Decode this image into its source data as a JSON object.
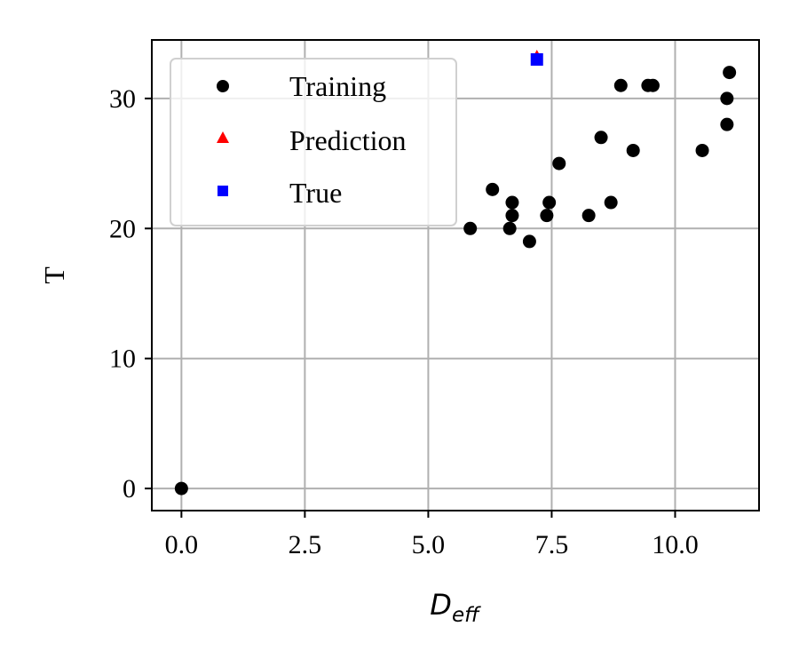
{
  "chart_data": {
    "type": "scatter",
    "xlabel_main": "D",
    "xlabel_sub": "eff",
    "ylabel": "T",
    "xlim": [
      -0.6,
      11.7
    ],
    "ylim": [
      -1.7,
      34.5
    ],
    "xticks": [
      0.0,
      2.5,
      5.0,
      7.5,
      10.0
    ],
    "xtick_labels": [
      "0.0",
      "2.5",
      "5.0",
      "7.5",
      "10.0"
    ],
    "yticks": [
      0,
      10,
      20,
      30
    ],
    "ytick_labels": [
      "0",
      "10",
      "20",
      "30"
    ],
    "grid": true,
    "legend_position": "upper-left",
    "series": [
      {
        "name": "Training",
        "marker": "circle",
        "color": "#000000",
        "points": [
          [
            0.0,
            0
          ],
          [
            5.85,
            20
          ],
          [
            6.3,
            23
          ],
          [
            6.65,
            20
          ],
          [
            6.7,
            21
          ],
          [
            6.7,
            22
          ],
          [
            7.05,
            19
          ],
          [
            7.4,
            21
          ],
          [
            7.45,
            22
          ],
          [
            7.65,
            25
          ],
          [
            8.25,
            21
          ],
          [
            8.5,
            27
          ],
          [
            8.7,
            22
          ],
          [
            8.9,
            31
          ],
          [
            9.15,
            26
          ],
          [
            9.45,
            31
          ],
          [
            9.55,
            31
          ],
          [
            10.55,
            26
          ],
          [
            11.05,
            28
          ],
          [
            11.05,
            30
          ],
          [
            11.1,
            32
          ]
        ]
      },
      {
        "name": "Prediction",
        "marker": "triangle",
        "color": "#ff0000",
        "points": [
          [
            7.2,
            33.2
          ]
        ]
      },
      {
        "name": "True",
        "marker": "square",
        "color": "#0000ff",
        "points": [
          [
            7.2,
            33
          ]
        ]
      }
    ]
  }
}
